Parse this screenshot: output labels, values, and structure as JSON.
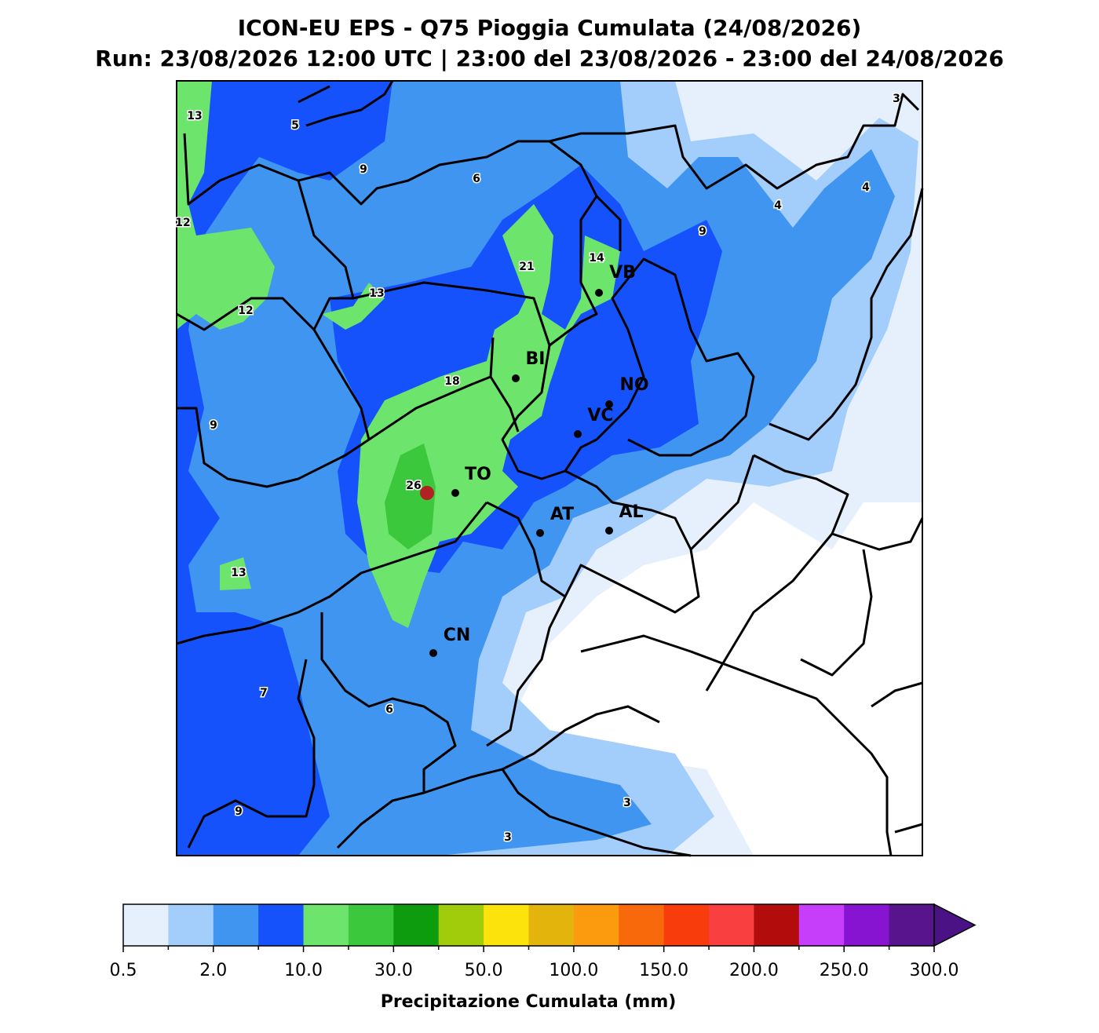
{
  "header": {
    "title": "ICON-EU EPS - Q75 Pioggia Cumulata (24/08/2026)",
    "subtitle": "Run: 23/08/2026 12:00 UTC | 23:00 del 23/08/2026 - 23:00 del 24/08/2026"
  },
  "map": {
    "cities": [
      "VB",
      "BI",
      "NO",
      "VC",
      "TO",
      "AT",
      "AL",
      "CN"
    ],
    "contour_labels": [
      "13",
      "5",
      "9",
      "6",
      "3",
      "4",
      "4",
      "9",
      "12",
      "14",
      "21",
      "13",
      "12",
      "18",
      "9",
      "26",
      "13",
      "7",
      "6",
      "3",
      "9",
      "3"
    ]
  },
  "colorbar": {
    "colors": [
      "#e6f0fd",
      "#a3cdfb",
      "#4095f0",
      "#1652fc",
      "#6de46b",
      "#3cc83c",
      "#0d9c0d",
      "#a0cc0c",
      "#fde30c",
      "#e3b40c",
      "#fb9b0d",
      "#f8690c",
      "#f93c0c",
      "#f93f3f",
      "#b30c0c",
      "#c63ef9",
      "#8714d0",
      "#58148c"
    ],
    "extend_color": "#4b1285",
    "tick_labels": [
      "0.5",
      "2.0",
      "10.0",
      "30.0",
      "50.0",
      "100.0",
      "150.0",
      "200.0",
      "250.0",
      "300.0"
    ],
    "label": "Precipitazione Cumulata (mm)"
  }
}
